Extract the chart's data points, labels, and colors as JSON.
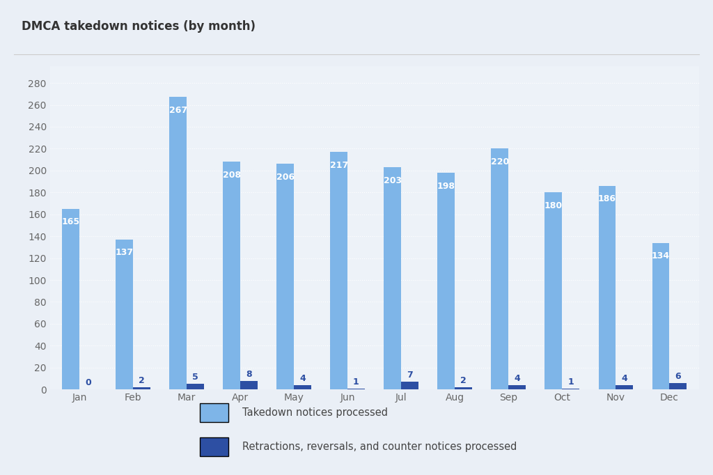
{
  "title": "DMCA takedown notices (by month)",
  "months": [
    "Jan",
    "Feb",
    "Mar",
    "Apr",
    "May",
    "Jun",
    "Jul",
    "Aug",
    "Sep",
    "Oct",
    "Nov",
    "Dec"
  ],
  "takedown": [
    165,
    137,
    267,
    208,
    206,
    217,
    203,
    198,
    220,
    180,
    186,
    134
  ],
  "retractions": [
    0,
    2,
    5,
    8,
    4,
    1,
    7,
    2,
    4,
    1,
    4,
    6
  ],
  "bar_color_takedown": "#7eb5e8",
  "bar_color_retractions": "#2d4fa3",
  "background_color": "#eaeff6",
  "plot_background": "#edf2f8",
  "grid_color": "#ffffff",
  "title_fontsize": 12,
  "label_fontsize": 10,
  "legend_label_takedown": "Takedown notices processed",
  "legend_label_retractions": "Retractions, reversals, and counter notices processed",
  "ylim": [
    0,
    295
  ],
  "yticks": [
    0,
    20,
    40,
    60,
    80,
    100,
    120,
    140,
    160,
    180,
    200,
    220,
    240,
    260,
    280
  ]
}
